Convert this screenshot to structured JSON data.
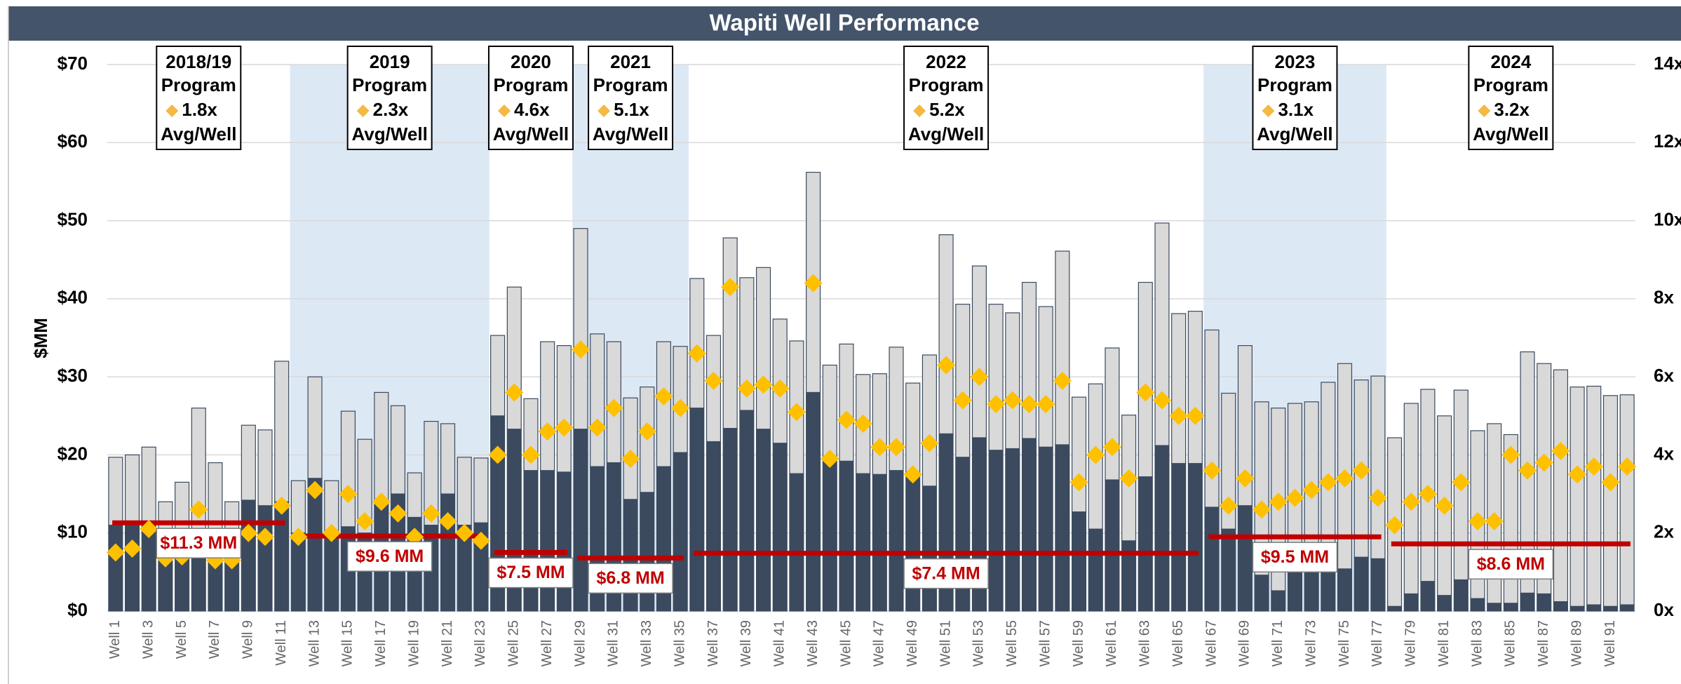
{
  "chart_data": {
    "type": "bar",
    "stacked": true,
    "title": "Wapiti Well Performance",
    "ylabel": "$MM",
    "categories": [
      "Well 1",
      null,
      "Well 3",
      null,
      "Well 5",
      null,
      "Well 7",
      null,
      "Well 9",
      null,
      "Well 11",
      null,
      "Well 13",
      null,
      "Well 15",
      null,
      "Well 17",
      null,
      "Well 19",
      null,
      "Well 21",
      null,
      "Well 23",
      null,
      "Well 25",
      null,
      "Well 27",
      null,
      "Well 29",
      null,
      "Well 31",
      null,
      "Well 33",
      null,
      "Well 35",
      null,
      "Well 37",
      null,
      "Well 39",
      null,
      "Well 41",
      null,
      "Well 43",
      null,
      "Well 45",
      null,
      "Well 47",
      null,
      "Well 49",
      null,
      "Well 51",
      null,
      "Well 53",
      null,
      "Well 55",
      null,
      "Well 57",
      null,
      "Well 59",
      null,
      "Well 61",
      null,
      "Well 63",
      null,
      "Well 65",
      null,
      "Well 67",
      null,
      "Well 69",
      null,
      "Well 71",
      null,
      "Well 73",
      null,
      "Well 75",
      null,
      "Well 77",
      null,
      "Well 79",
      null,
      "Well 81",
      null,
      "Well 83",
      null,
      "Well 85",
      null,
      "Well 87",
      null,
      "Well 89",
      null,
      "Well 91",
      null
    ],
    "series": [
      {
        "color": "#3b4a5e",
        "values": [
          11,
          11.5,
          11,
          7.5,
          8,
          10,
          8,
          8,
          14.2,
          13.5,
          14,
          10,
          17,
          10,
          10.8,
          10,
          14,
          15,
          12,
          11,
          15,
          11,
          11.3,
          25,
          23.3,
          18,
          18,
          17.8,
          23.3,
          18.5,
          19,
          14.3,
          15.2,
          18.5,
          20.3,
          26,
          21.7,
          23.4,
          25.7,
          23.3,
          21.5,
          17.6,
          28,
          19.3,
          19.2,
          17.6,
          17.5,
          18,
          17.8,
          16,
          22.7,
          19.7,
          22.2,
          20.6,
          20.8,
          22.1,
          21,
          21.3,
          12.7,
          10.5,
          16.8,
          9,
          17.2,
          21.2,
          18.9,
          18.9,
          13.3,
          10.5,
          13.5,
          4.6,
          2.6,
          5,
          5.5,
          6,
          5.4,
          6.9,
          6.7,
          0.6,
          2.2,
          3.8,
          2,
          4,
          1.6,
          1,
          1,
          2.3,
          2.2,
          1.2,
          0.6,
          0.8,
          0.6,
          0.8
        ]
      },
      {
        "color": "#d9d9d9",
        "values": [
          8.7,
          8.5,
          10,
          6.5,
          8.5,
          16,
          11,
          6,
          9.6,
          9.7,
          18,
          6.7,
          13,
          6.7,
          14.8,
          12,
          14,
          11.3,
          5.7,
          13.3,
          9,
          8.7,
          8.3,
          10.3,
          18.2,
          9.2,
          16.5,
          16.2,
          25.7,
          17,
          15.5,
          13,
          13.5,
          16,
          13.6,
          16.6,
          13.6,
          24.4,
          17,
          20.7,
          15.9,
          17,
          28.2,
          12.2,
          15,
          12.7,
          12.9,
          15.8,
          11.4,
          16.8,
          25.5,
          19.6,
          22,
          18.7,
          17.4,
          20,
          18,
          24.8,
          14.7,
          18.6,
          16.9,
          16.1,
          24.9,
          28.5,
          19.2,
          19.5,
          22.7,
          17.4,
          20.5,
          22.2,
          23.4,
          21.6,
          21.3,
          23.3,
          26.3,
          22.7,
          23.4,
          21.6,
          24.4,
          24.6,
          23,
          24.3,
          21.5,
          23,
          21.6,
          30.9,
          29.5,
          29.7,
          28.1,
          28,
          27,
          26.9
        ]
      },
      {
        "color": "#ffc000",
        "axis": "y2",
        "mark": "diamond",
        "values": [
          1.5,
          1.6,
          2.1,
          1.35,
          1.4,
          2.6,
          1.3,
          1.3,
          2.0,
          1.9,
          2.7,
          1.9,
          3.1,
          2.0,
          3.0,
          2.3,
          2.8,
          2.5,
          1.9,
          2.5,
          2.3,
          2.0,
          1.8,
          4.0,
          5.6,
          4.0,
          4.6,
          4.7,
          6.7,
          4.7,
          5.2,
          3.9,
          4.6,
          5.5,
          5.2,
          6.6,
          5.9,
          8.3,
          5.7,
          5.8,
          5.7,
          5.1,
          8.4,
          3.9,
          4.9,
          4.8,
          4.2,
          4.2,
          3.5,
          4.3,
          6.3,
          5.4,
          6.0,
          5.3,
          5.4,
          5.3,
          5.3,
          5.9,
          3.3,
          4.0,
          4.2,
          3.4,
          5.6,
          5.4,
          5.0,
          5.0,
          3.6,
          2.7,
          3.4,
          2.6,
          2.8,
          2.9,
          3.1,
          3.3,
          3.4,
          3.6,
          2.9,
          2.2,
          2.8,
          3.0,
          2.7,
          3.3,
          2.3,
          2.3,
          4.0,
          3.6,
          3.8,
          4.1,
          3.5,
          3.7,
          3.3,
          3.7
        ]
      }
    ],
    "ylim": [
      0,
      70
    ],
    "yticks": [
      {
        "value": 0,
        "label": "$0"
      },
      {
        "value": 10,
        "label": "$10"
      },
      {
        "value": 20,
        "label": "$20"
      },
      {
        "value": 30,
        "label": "$30"
      },
      {
        "value": 40,
        "label": "$40"
      },
      {
        "value": 50,
        "label": "$50"
      },
      {
        "value": 60,
        "label": "$60"
      },
      {
        "value": 70,
        "label": "$70"
      }
    ],
    "y2lim": [
      0,
      14
    ],
    "y2ticks": [
      {
        "value": 0,
        "label": "0x"
      },
      {
        "value": 2,
        "label": "2x"
      },
      {
        "value": 4,
        "label": "4x"
      },
      {
        "value": 6,
        "label": "6x"
      },
      {
        "value": 8,
        "label": "8x"
      },
      {
        "value": 10,
        "label": "10x"
      },
      {
        "value": 12,
        "label": "12x"
      },
      {
        "value": 14,
        "label": "14x"
      }
    ],
    "grid": true,
    "programs": [
      {
        "lines": [
          "2018/19",
          "Program",
          "1.8x",
          "Avg/Well"
        ],
        "wells": 11,
        "shaded": false,
        "avg": 11.3,
        "avg_label": "$11.3 MM"
      },
      {
        "lines": [
          "2019",
          "Program",
          "2.3x",
          "Avg/Well"
        ],
        "wells": 12,
        "shaded": true,
        "avg": 9.6,
        "avg_label": "$9.6 MM"
      },
      {
        "lines": [
          "2020",
          "Program",
          "4.6x",
          "Avg/Well"
        ],
        "wells": 5,
        "shaded": false,
        "avg": 7.5,
        "avg_label": "$7.5 MM"
      },
      {
        "lines": [
          "2021",
          "Program",
          "5.1x",
          "Avg/Well"
        ],
        "wells": 7,
        "shaded": true,
        "avg": 6.8,
        "avg_label": "$6.8 MM"
      },
      {
        "lines": [
          "2022",
          "Program",
          "5.2x",
          "Avg/Well"
        ],
        "wells": 31,
        "shaded": false,
        "avg": 7.4,
        "avg_label": "$7.4 MM"
      },
      {
        "lines": [
          "2023",
          "Program",
          "3.1x",
          "Avg/Well"
        ],
        "wells": 11,
        "shaded": true,
        "avg": 9.5,
        "avg_label": "$9.5 MM"
      },
      {
        "lines": [
          "2024",
          "Program",
          "3.2x",
          "Avg/Well"
        ],
        "wells": 15,
        "shaded": false,
        "avg": 8.6,
        "avg_label": "$8.6 MM"
      }
    ]
  }
}
